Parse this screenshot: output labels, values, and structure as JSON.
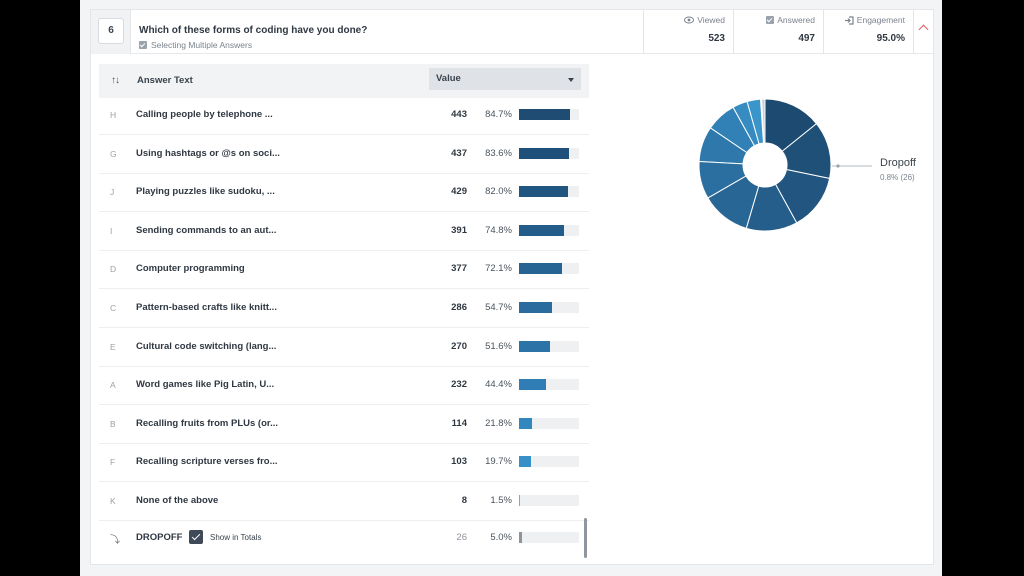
{
  "question": {
    "number": "6",
    "title": "Which of these forms of coding have you done?",
    "subtitle": "Selecting Multiple Answers"
  },
  "stats": {
    "viewed": {
      "label": "Viewed",
      "value": "523"
    },
    "answered": {
      "label": "Answered",
      "value": "497"
    },
    "engagement": {
      "label": "Engagement",
      "value": "95.0%"
    }
  },
  "table": {
    "col_answer": "Answer Text",
    "col_value": "Value",
    "rows": [
      {
        "letter": "H",
        "label": "Calling people by telephone ...",
        "count": "443",
        "pct": "84.7%",
        "fraction": 0.847,
        "color": "#1e4c72"
      },
      {
        "letter": "G",
        "label": "Using hashtags or @s on soci...",
        "count": "437",
        "pct": "83.6%",
        "fraction": 0.836,
        "color": "#1f5079"
      },
      {
        "letter": "J",
        "label": "Playing puzzles like sudoku, ...",
        "count": "429",
        "pct": "82.0%",
        "fraction": 0.82,
        "color": "#215681"
      },
      {
        "letter": "I",
        "label": "Sending commands to an aut...",
        "count": "391",
        "pct": "74.8%",
        "fraction": 0.748,
        "color": "#245d89"
      },
      {
        "letter": "D",
        "label": "Computer programming",
        "count": "377",
        "pct": "72.1%",
        "fraction": 0.721,
        "color": "#266493"
      },
      {
        "letter": "C",
        "label": "Pattern-based crafts like knitt...",
        "count": "286",
        "pct": "54.7%",
        "fraction": 0.547,
        "color": "#296c9d"
      },
      {
        "letter": "E",
        "label": "Cultural code switching (lang...",
        "count": "270",
        "pct": "51.6%",
        "fraction": 0.516,
        "color": "#2c74a8"
      },
      {
        "letter": "A",
        "label": "Word games like Pig Latin, U...",
        "count": "232",
        "pct": "44.4%",
        "fraction": 0.444,
        "color": "#2f7db4"
      },
      {
        "letter": "B",
        "label": "Recalling fruits from PLUs (or...",
        "count": "114",
        "pct": "21.8%",
        "fraction": 0.218,
        "color": "#3387bf"
      },
      {
        "letter": "F",
        "label": "Recalling scripture verses fro...",
        "count": "103",
        "pct": "19.7%",
        "fraction": 0.197,
        "color": "#3790c8"
      },
      {
        "letter": "K",
        "label": "None of the above",
        "count": "8",
        "pct": "1.5%",
        "fraction": 0.015,
        "color": "#9aa3ad"
      }
    ],
    "dropoff": {
      "label": "DROPOFF",
      "checkbox_label": "Show in Totals",
      "count": "26",
      "pct": "5.0%",
      "fraction": 0.05,
      "color": "#8d949c"
    }
  },
  "donut": {
    "legend_label": "Dropoff",
    "legend_sub": "0.8% (26)",
    "segments": [
      {
        "value": 443,
        "color": "#1c4a70"
      },
      {
        "value": 437,
        "color": "#1f5078"
      },
      {
        "value": 429,
        "color": "#225681"
      },
      {
        "value": 391,
        "color": "#255e8b"
      },
      {
        "value": 377,
        "color": "#286695"
      },
      {
        "value": 286,
        "color": "#2b6fa0"
      },
      {
        "value": 270,
        "color": "#2e78ab"
      },
      {
        "value": 232,
        "color": "#3281b6"
      },
      {
        "value": 114,
        "color": "#368bc0"
      },
      {
        "value": 103,
        "color": "#3a95ca"
      },
      {
        "value": 8,
        "color": "#9fb6c8"
      },
      {
        "value": 26,
        "color": "#c7ced5"
      }
    ]
  }
}
